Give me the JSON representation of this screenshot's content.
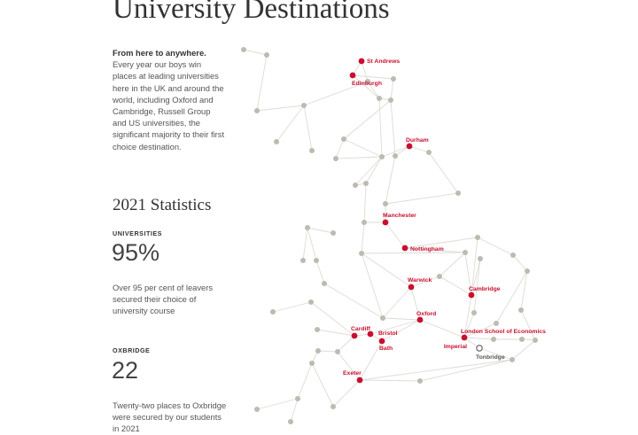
{
  "page": {
    "title": "University Destinations"
  },
  "intro": {
    "lead": "From here to anywhere.",
    "body": " Every year our boys win places at leading universities here in the UK and around the world, including Oxford and Cambridge, Russell Group and US universities, the significant majority to their first choice destination."
  },
  "statistics": {
    "heading": "2021 Statistics",
    "universities": {
      "label": "UNIVERSITIES",
      "value": "95%",
      "description": "Over 95 per cent of leavers secured their choice of university course"
    },
    "oxbridge": {
      "label": "OXBRIDGE",
      "value": "22",
      "description": "Twenty-two places to Oxbridge were secured by our students in 2021"
    }
  },
  "map": {
    "colors": {
      "destination": "#c8102e",
      "node": "#bdbab0",
      "line": "#dddbd5",
      "home": "#777777"
    },
    "destinations": [
      {
        "id": "st-andrews",
        "name": "St Andrews"
      },
      {
        "id": "edinburgh",
        "name": "Edinburgh"
      },
      {
        "id": "durham",
        "name": "Durham"
      },
      {
        "id": "manchester",
        "name": "Manchester"
      },
      {
        "id": "nottingham",
        "name": "Nottingham"
      },
      {
        "id": "warwick",
        "name": "Warwick"
      },
      {
        "id": "cambridge",
        "name": "Cambridge"
      },
      {
        "id": "oxford",
        "name": "Oxford"
      },
      {
        "id": "cardiff",
        "name": "Cardiff"
      },
      {
        "id": "bristol",
        "name": "Bristol"
      },
      {
        "id": "bath",
        "name": "Bath"
      },
      {
        "id": "lse",
        "name": "London School of Economics"
      },
      {
        "id": "imperial",
        "name": "Imperial"
      },
      {
        "id": "exeter",
        "name": "Exeter"
      }
    ],
    "home": {
      "id": "tonbridge",
      "name": "Tonbridge"
    }
  }
}
